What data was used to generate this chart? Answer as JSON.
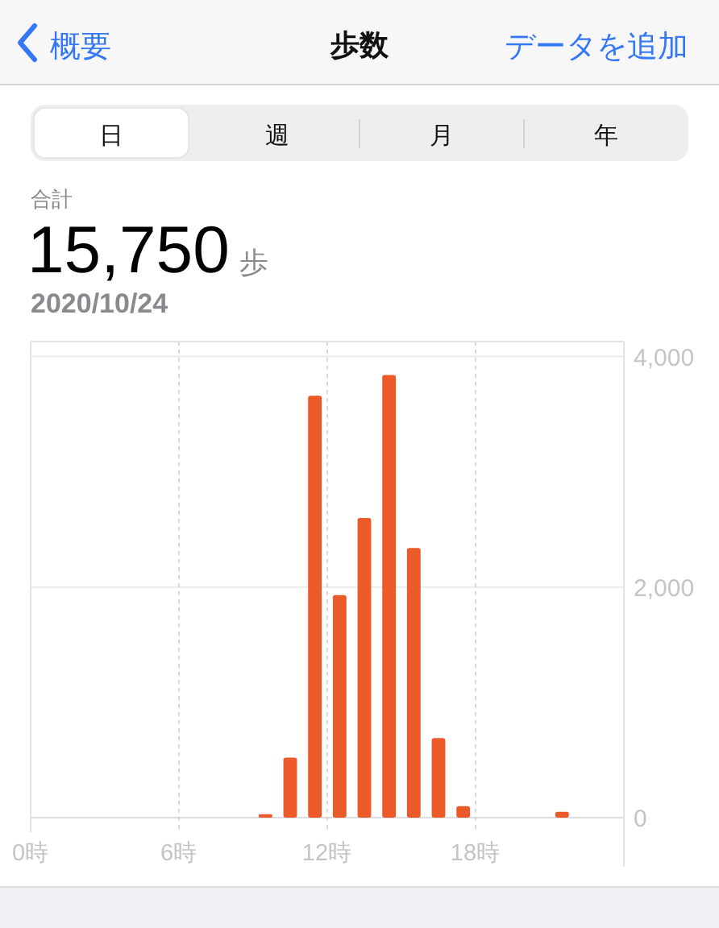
{
  "chart_data": {
    "type": "bar",
    "title": "歩数",
    "annotations": [
      "概要",
      "データを追加",
      "日",
      "週",
      "月",
      "年",
      "合計",
      "15,750",
      "歩",
      "2020/10/24"
    ],
    "x": [
      9.5,
      10.5,
      11.5,
      12.5,
      13.5,
      14.5,
      15.5,
      16.5,
      17.5,
      21.5
    ],
    "values": [
      30,
      520,
      3660,
      1930,
      2600,
      3840,
      2340,
      690,
      100,
      50
    ],
    "color": "#ec5a2a",
    "xlim": [
      0,
      24
    ],
    "xticks": [
      {
        "value": 0,
        "label": "0時"
      },
      {
        "value": 6,
        "label": "6時"
      },
      {
        "value": 12,
        "label": "12時"
      },
      {
        "value": 18,
        "label": "18時"
      }
    ],
    "ylim": [
      0,
      4130
    ],
    "yticks": [
      {
        "value": 0,
        "label": "0"
      },
      {
        "value": 2000,
        "label": "2,000"
      },
      {
        "value": 4000,
        "label": "4,000"
      }
    ],
    "grid": true
  }
}
